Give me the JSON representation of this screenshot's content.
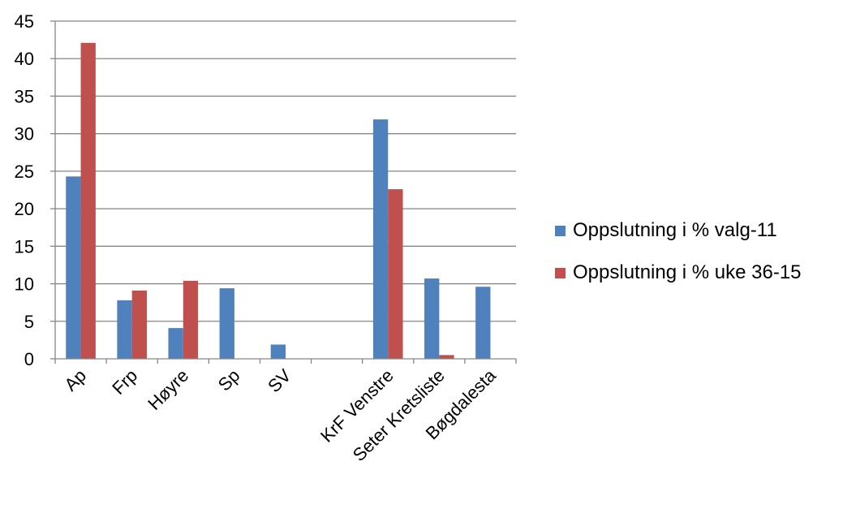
{
  "chart_data": {
    "type": "bar",
    "categories": [
      "Ap",
      "Frp",
      "Høyre",
      "Sp",
      "SV",
      "",
      "KrF Venstre",
      "Seter Kretsliste",
      "Bøgdalesta"
    ],
    "series": [
      {
        "name": "Oppslutning i % valg-11",
        "color": "#4F81BD",
        "values": [
          24.3,
          7.8,
          4.1,
          9.4,
          1.9,
          0,
          31.9,
          10.7,
          9.6
        ]
      },
      {
        "name": "Oppslutning i % uke 36-15",
        "color": "#C0504D",
        "values": [
          42.1,
          9.1,
          10.4,
          0,
          0,
          0,
          22.6,
          0.5,
          0
        ]
      }
    ],
    "ylim": [
      0,
      45
    ],
    "ytick_step": 5,
    "yticks": [
      "0",
      "5",
      "10",
      "15",
      "20",
      "25",
      "30",
      "35",
      "40",
      "45"
    ],
    "grid": true,
    "legend_position": "right",
    "title": "",
    "xlabel": "",
    "ylabel": ""
  }
}
